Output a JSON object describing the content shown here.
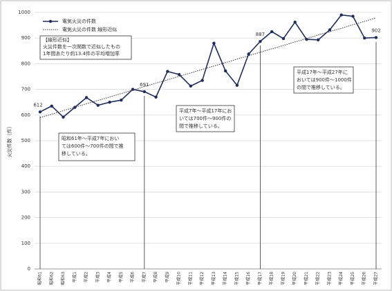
{
  "chart_data": {
    "type": "line",
    "y_label": "火災件数（件）",
    "categories": [
      "昭和61",
      "昭和62",
      "昭和63",
      "平成1",
      "平成2",
      "平成3",
      "平成4",
      "平成5",
      "平成6",
      "平成7",
      "平成8",
      "平成9",
      "平成10",
      "平成11",
      "平成12",
      "平成13",
      "平成14",
      "平成15",
      "平成16",
      "平成17",
      "平成18",
      "平成19",
      "平成20",
      "平成21",
      "平成22",
      "平成23",
      "平成24",
      "平成25",
      "平成26",
      "平成27"
    ],
    "series": [
      {
        "name": "電気火災の件数",
        "color": "#1f2d5a",
        "style": "solid-marker",
        "values": [
          612,
          635,
          592,
          630,
          668,
          638,
          650,
          658,
          700,
          691,
          670,
          770,
          758,
          713,
          735,
          880,
          772,
          716,
          838,
          887,
          925,
          898,
          962,
          895,
          893,
          932,
          990,
          985,
          900,
          902
        ],
        "value_labels": [
          "612",
          null,
          null,
          null,
          null,
          null,
          null,
          null,
          null,
          "691",
          null,
          null,
          null,
          null,
          null,
          null,
          null,
          null,
          null,
          "887",
          null,
          null,
          null,
          null,
          null,
          null,
          null,
          null,
          null,
          "902"
        ]
      },
      {
        "name": "電気火災の件数  線形近似",
        "color": "#333333",
        "style": "dotted",
        "values": [
          590,
          603,
          617,
          630,
          644,
          657,
          670,
          684,
          697,
          711,
          724,
          737,
          751,
          764,
          778,
          791,
          804,
          818,
          831,
          845,
          858,
          871,
          885,
          898,
          912,
          925,
          938,
          952,
          965,
          979
        ]
      }
    ],
    "ylim": [
      0,
      1000
    ],
    "yticks": [
      0,
      100,
      200,
      300,
      400,
      500,
      600,
      700,
      800,
      900,
      1000
    ],
    "grid": true,
    "note_lines": [
      "【線形近似】",
      "火災件数を一次関数で近似したもの",
      "1年間あたり約13.4件の平均増加率"
    ],
    "annotations": [
      [
        "昭和61年～平成7年におい",
        "ては600件～700件の間で推",
        "移している。"
      ],
      [
        "平成7年～平成17年にお",
        "いては700件～900件の",
        "間で推移している。"
      ],
      [
        "平成17年～平成27年に",
        "おいては900件～1000件",
        "の間で推移している。"
      ]
    ]
  }
}
